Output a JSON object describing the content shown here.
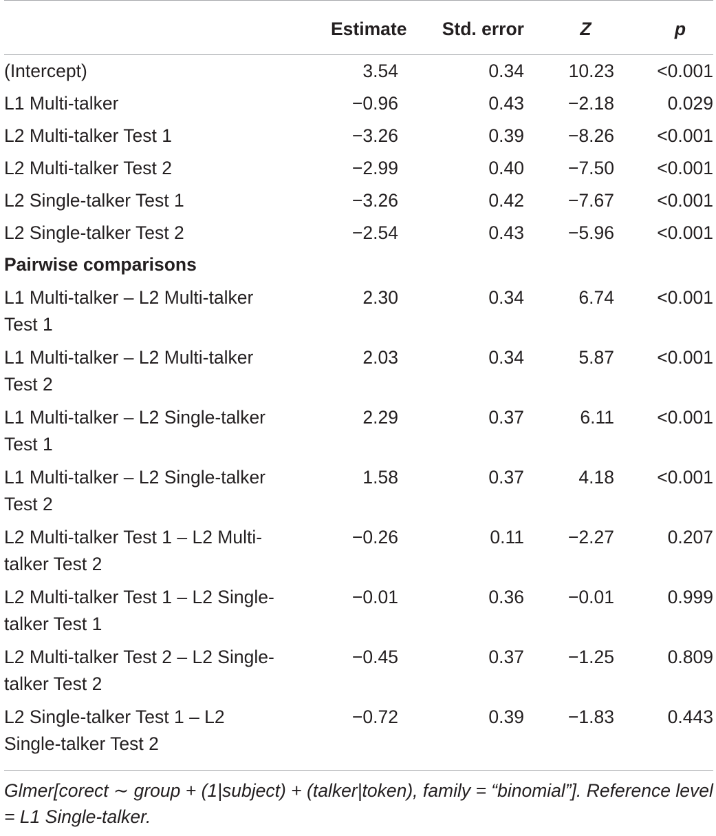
{
  "columns": [
    "",
    "Estimate",
    "Std. error",
    "Z",
    "p"
  ],
  "rows": [
    {
      "label": "(Intercept)",
      "estimate": "3.54",
      "std_error": "0.34",
      "z": "10.23",
      "p": "<0.001"
    },
    {
      "label": "L1 Multi-talker",
      "estimate": "−0.96",
      "std_error": "0.43",
      "z": "−2.18",
      "p": "0.029"
    },
    {
      "label": "L2 Multi-talker Test 1",
      "estimate": "−3.26",
      "std_error": "0.39",
      "z": "−8.26",
      "p": "<0.001"
    },
    {
      "label": "L2 Multi-talker Test 2",
      "estimate": "−2.99",
      "std_error": "0.40",
      "z": "−7.50",
      "p": "<0.001"
    },
    {
      "label": "L2 Single-talker Test 1",
      "estimate": "−3.26",
      "std_error": "0.42",
      "z": "−7.67",
      "p": "<0.001"
    },
    {
      "label": "L2 Single-talker Test 2",
      "estimate": "−2.54",
      "std_error": "0.43",
      "z": "−5.96",
      "p": "<0.001"
    }
  ],
  "section_heading": "Pairwise comparisons",
  "pairwise_rows": [
    {
      "label": "L1 Multi-talker – L2 Multi-talker Test 1",
      "estimate": "2.30",
      "std_error": "0.34",
      "z": "6.74",
      "p": "<0.001"
    },
    {
      "label": "L1 Multi-talker – L2 Multi-talker Test 2",
      "estimate": "2.03",
      "std_error": "0.34",
      "z": "5.87",
      "p": "<0.001"
    },
    {
      "label": "L1 Multi-talker – L2 Single-talker Test 1",
      "estimate": "2.29",
      "std_error": "0.37",
      "z": "6.11",
      "p": "<0.001"
    },
    {
      "label": "L1 Multi-talker – L2 Single-talker Test 2",
      "estimate": "1.58",
      "std_error": "0.37",
      "z": "4.18",
      "p": "<0.001"
    },
    {
      "label": "L2 Multi-talker Test 1 – L2 Multi-talker Test 2",
      "estimate": "−0.26",
      "std_error": "0.11",
      "z": "−2.27",
      "p": "0.207"
    },
    {
      "label": "L2 Multi-talker Test 1 – L2 Single-talker Test 1",
      "estimate": "−0.01",
      "std_error": "0.36",
      "z": "−0.01",
      "p": "0.999"
    },
    {
      "label": "L2 Multi-talker Test 2 – L2 Single-talker Test 2",
      "estimate": "−0.45",
      "std_error": "0.37",
      "z": "−1.25",
      "p": "0.809"
    },
    {
      "label": "L2 Single-talker Test 1 – L2 Single-talker Test 2",
      "estimate": "−0.72",
      "std_error": "0.39",
      "z": "−1.83",
      "p": "0.443"
    }
  ],
  "footnote": "Glmer[corect ∼ group + (1|subject) + (talker|token), family = “binomial”]. Reference level = L1 Single-talker.",
  "colors": {
    "text": "#231f20",
    "rule": "#a7a9ac"
  }
}
